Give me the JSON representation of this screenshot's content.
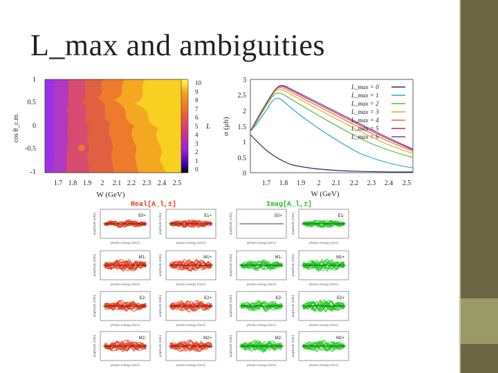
{
  "slide": {
    "title": "L_max and ambiguities",
    "colors": {
      "bar_dark": "#6b6445",
      "bar_accent": "#9a9a66"
    }
  },
  "heatmap": {
    "yticks": [
      "1",
      "0.5",
      "0",
      "-0.5",
      "-1"
    ],
    "xticks": [
      "1.7",
      "1.8",
      "1.9",
      "2",
      "2.1",
      "2.2",
      "2.3",
      "2.4",
      "2.5"
    ],
    "ylabel": "cos θ_c.m.",
    "xlabel": "W (GeV)",
    "colorbar_ticks": [
      "10",
      "9",
      "8",
      "7",
      "6",
      "5",
      "4",
      "3",
      "2",
      "1",
      "0"
    ],
    "colorbar_label": "L"
  },
  "cross_section": {
    "ylabel": "σ (μb)",
    "xlabel": "W (GeV)",
    "yticks": [
      "3",
      "2.5",
      "2",
      "1.5",
      "1",
      "0.5",
      "0"
    ],
    "xticks": [
      "1.7",
      "1.8",
      "1.9",
      "2",
      "2.1",
      "2.2",
      "2.3",
      "2.4",
      "2.5"
    ],
    "legend": [
      {
        "label": "L_max = 0",
        "color": "#2a2a66"
      },
      {
        "label": "L_max = 1",
        "color": "#22aacc"
      },
      {
        "label": "L_max = 2",
        "color": "#55bb33"
      },
      {
        "label": "L_max = 3",
        "color": "#ddaa33"
      },
      {
        "label": "L_max = 4",
        "color": "#ee6633"
      },
      {
        "label": "L_max = 5",
        "color": "#cc2233"
      },
      {
        "label": "L_max = 6",
        "color": "#6644aa"
      }
    ]
  },
  "multipoles": {
    "real_title": "Real[A_l,±]",
    "imag_title": "Imag[A_l,±]",
    "rows": [
      "E0+ / E1+",
      "M1- / M1+",
      "E2- / E2+",
      "M2- / M2+"
    ],
    "x_axis_label": "photon energy (GeV)",
    "y_axis_label": "amplitude (mfm)",
    "real_color": "#e83a1a",
    "imag_color": "#22cc22",
    "panel_labels": [
      "E0+",
      "E1+",
      "E0+",
      "E1-",
      "M1-",
      "M1+",
      "M1-",
      "M1+",
      "E2-",
      "E2+",
      "E2-",
      "E2+",
      "M2-",
      "M2+",
      "M2-",
      "M2+"
    ]
  }
}
